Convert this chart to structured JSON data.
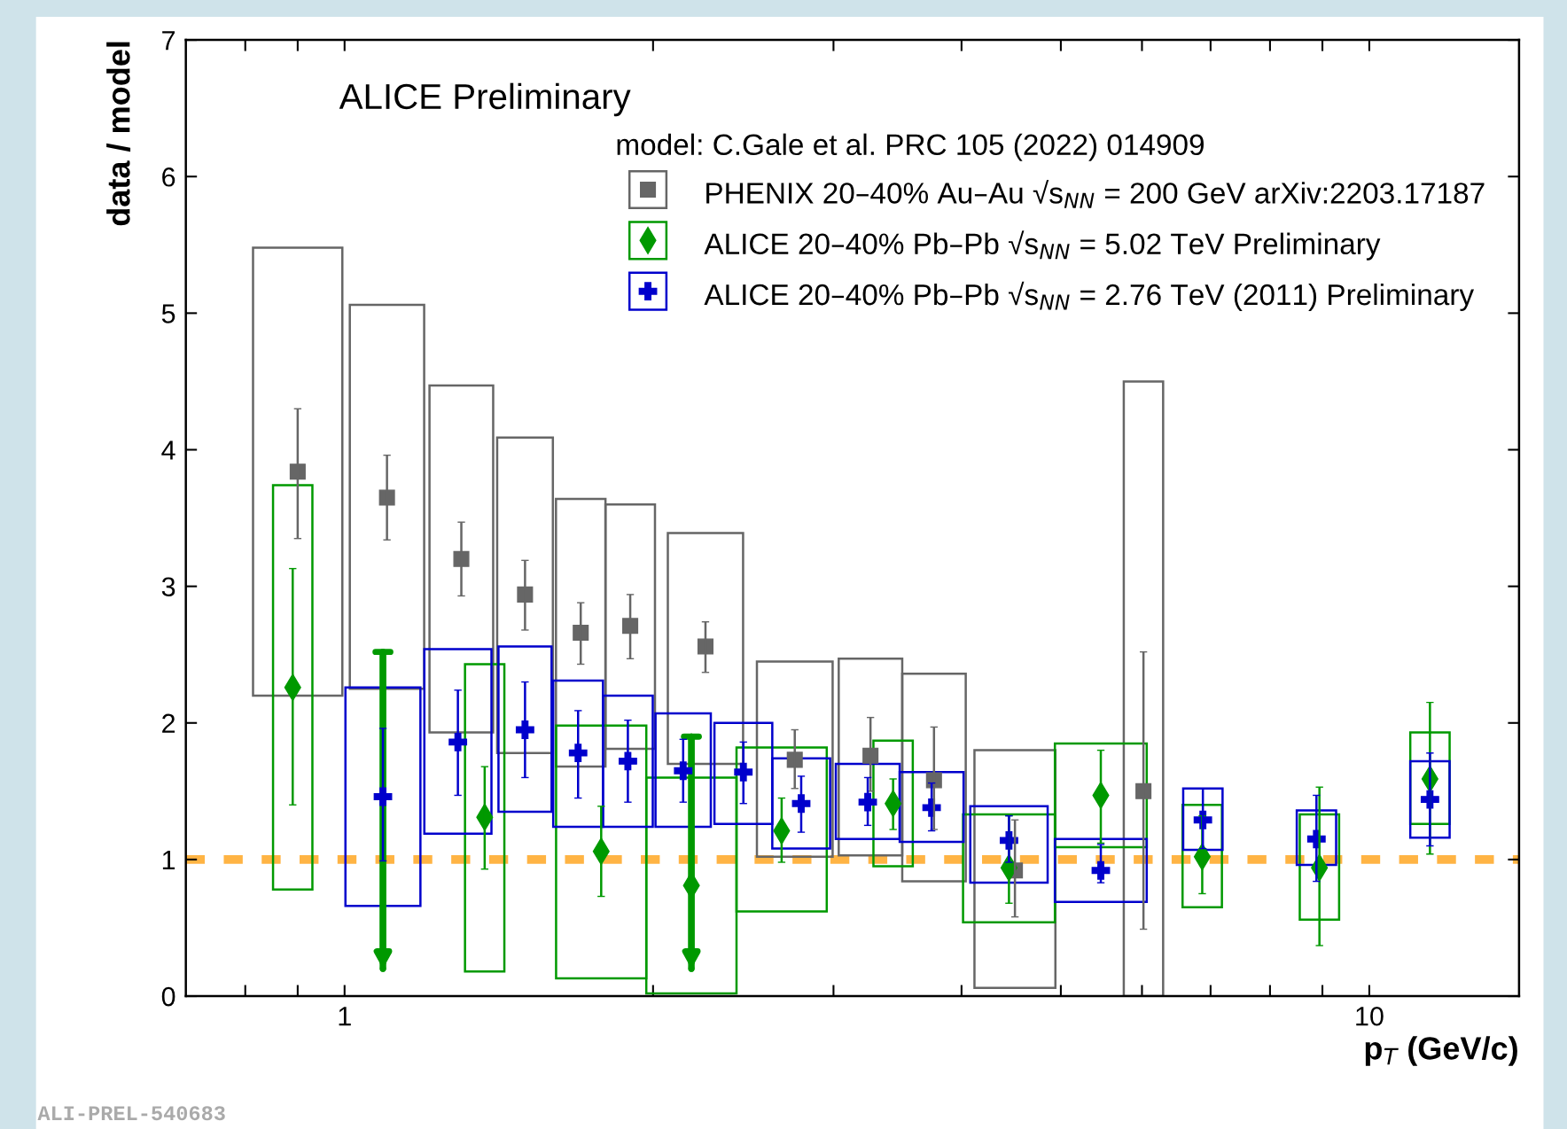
{
  "chart_data": {
    "type": "scatter",
    "xlabel": "p$_{T}$ (GeV/c)",
    "ylabel": "data / model",
    "legend_title": "model: C.Gale et al. PRC 105 (2022) 014909",
    "legend": "top right",
    "log": "x",
    "xlim": [
      0.7,
      14
    ],
    "ylim": [
      0,
      7
    ],
    "xticks": [
      {
        "value": 0.8,
        "label": null
      },
      {
        "value": 0.9,
        "label": null
      },
      1,
      {
        "value": 2,
        "label": null
      },
      {
        "value": 3,
        "label": null
      },
      {
        "value": 4,
        "label": null
      },
      {
        "value": 5,
        "label": null
      },
      {
        "value": 6,
        "label": null
      },
      {
        "value": 7,
        "label": null
      },
      {
        "value": 8,
        "label": null
      },
      {
        "value": 9,
        "label": null
      },
      10
    ],
    "yticks": [
      0,
      1,
      2,
      3,
      4,
      5,
      6,
      7
    ],
    "ref_lines": [
      {
        "axis": "y",
        "value": 1,
        "color": "#ffb444",
        "line_style": "dashed"
      }
    ],
    "annotations": [
      "ALICE Preliminary",
      "ALI-PREL-540683"
    ],
    "series": [
      {
        "type": "bar",
        "color": "#666666",
        "x": [
          0.9,
          1.1,
          1.3,
          1.5,
          1.7,
          1.9,
          2.25,
          2.75,
          3.26,
          3.76,
          4.51,
          6.02
        ],
        "base": [
          2.2,
          2.25,
          1.93,
          1.78,
          1.68,
          1.81,
          1.7,
          1.02,
          1.03,
          0.84,
          0.06,
          0
        ],
        "values": [
          3.28,
          2.81,
          2.54,
          2.31,
          1.96,
          1.79,
          1.69,
          1.43,
          1.44,
          1.52,
          1.74,
          4.5
        ]
      },
      {
        "type": "bar",
        "color": "#009900",
        "x": [
          0.89,
          1.37,
          1.78,
          2.18,
          2.67,
          3.43,
          4.45,
          5.47,
          6.87,
          8.94,
          11.46
        ],
        "base": [
          0.78,
          0.18,
          0.13,
          0.02,
          0.62,
          0.95,
          0.54,
          1.09,
          0.65,
          0.56,
          1.26
        ],
        "values": [
          2.96,
          2.25,
          1.85,
          1.58,
          1.2,
          0.92,
          0.79,
          0.76,
          0.75,
          0.77,
          0.67
        ]
      },
      {
        "type": "bar",
        "color": "#0000cc",
        "x": [
          1.09,
          1.29,
          1.5,
          1.69,
          1.89,
          2.14,
          2.45,
          2.79,
          3.24,
          3.74,
          4.45,
          5.47,
          6.88,
          8.88,
          11.46
        ],
        "base": [
          0.66,
          1.19,
          1.35,
          1.24,
          1.24,
          1.24,
          1.26,
          1.08,
          1.15,
          1.13,
          0.83,
          0.69,
          1.07,
          0.96,
          1.16
        ],
        "values": [
          1.6,
          1.35,
          1.21,
          1.07,
          0.96,
          0.83,
          0.74,
          0.66,
          0.55,
          0.51,
          0.56,
          0.46,
          0.45,
          0.4,
          0.56
        ]
      },
      {
        "name": "PHENIX 20–40% Au–Au √s$_{NN}$ = 200 GeV arXiv:2203.17187",
        "color": "#666666",
        "marker": "square",
        "x": [
          0.9,
          1.1,
          1.3,
          1.5,
          1.7,
          1.9,
          2.25,
          2.75,
          3.26,
          3.76,
          4.51,
          6.02
        ],
        "values": [
          3.84,
          3.65,
          3.2,
          2.94,
          2.66,
          2.71,
          2.56,
          1.73,
          1.76,
          1.58,
          0.92,
          1.5
        ],
        "errors": [
          [
            3.35,
            4.3
          ],
          [
            3.34,
            3.96
          ],
          [
            2.93,
            3.47
          ],
          [
            2.68,
            3.19
          ],
          [
            2.43,
            2.88
          ],
          [
            2.47,
            2.94
          ],
          [
            2.37,
            2.74
          ],
          [
            1.52,
            1.95
          ],
          [
            1.5,
            2.04
          ],
          [
            1.22,
            1.97
          ],
          [
            0.58,
            1.29
          ],
          [
            0.49,
            2.52
          ]
        ]
      },
      {
        "name": "ALICE 20–40% Pb–Pb √s$_{NN}$ = 5.02 TeV Preliminary",
        "color": "#009900",
        "marker": "diamond",
        "x": [
          0.89,
          1.37,
          1.78,
          2.18,
          2.67,
          3.43,
          4.45,
          5.47,
          6.87,
          8.94,
          11.46
        ],
        "values": [
          2.26,
          1.31,
          1.06,
          0.81,
          1.21,
          1.41,
          0.94,
          1.47,
          1.02,
          0.94,
          1.59
        ],
        "errors": [
          [
            1.4,
            3.13
          ],
          [
            0.93,
            1.68
          ],
          [
            0.73,
            1.39
          ],
          null,
          [
            0.98,
            1.45
          ],
          [
            1.22,
            1.59
          ],
          [
            0.68,
            1.32
          ],
          [
            1.12,
            1.8
          ],
          [
            0.75,
            1.32
          ],
          [
            0.37,
            1.53
          ],
          [
            1.04,
            2.15
          ]
        ]
      },
      {
        "name": "ALICE 20–40% Pb–Pb √s$_{NN}$ = 2.76 TeV (2011) Preliminary",
        "color": "#0000cc",
        "marker": "cross",
        "x": [
          1.09,
          1.29,
          1.5,
          1.69,
          1.89,
          2.14,
          2.45,
          2.79,
          3.24,
          3.74,
          4.45,
          5.47,
          6.88,
          8.88,
          11.46
        ],
        "values": [
          1.46,
          1.86,
          1.95,
          1.78,
          1.72,
          1.65,
          1.64,
          1.41,
          1.42,
          1.38,
          1.14,
          0.92,
          1.29,
          1.15,
          1.44
        ],
        "errors": [
          [
            0.99,
            1.96
          ],
          [
            1.47,
            2.24
          ],
          [
            1.6,
            2.3
          ],
          [
            1.45,
            2.09
          ],
          [
            1.42,
            2.02
          ],
          [
            1.42,
            1.88
          ],
          [
            1.41,
            1.86
          ],
          [
            1.2,
            1.61
          ],
          [
            1.25,
            1.6
          ],
          [
            1.21,
            1.56
          ],
          [
            0.98,
            1.32
          ],
          [
            0.83,
            1.11
          ],
          [
            1.08,
            1.52
          ],
          [
            0.84,
            1.47
          ],
          [
            1.1,
            1.78
          ]
        ]
      },
      {
        "type": "line",
        "color": "#009900",
        "x": [
          1.09,
          1.09
        ],
        "values": [
          2.52,
          0.2
        ]
      },
      {
        "type": "line",
        "color": "#009900",
        "x": [
          2.18,
          2.18
        ],
        "values": [
          1.9,
          0.2
        ]
      }
    ]
  }
}
